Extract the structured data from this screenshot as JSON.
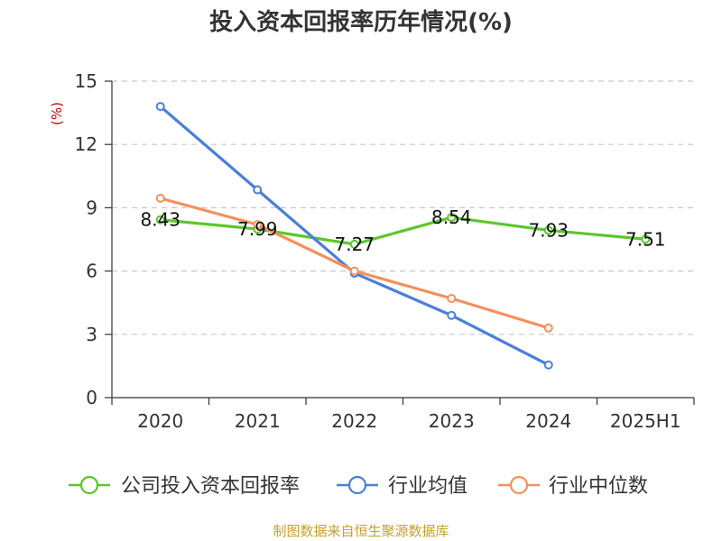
{
  "chart_data": {
    "type": "line",
    "title": "投入资本回报率历年情况(%)",
    "ylabel": "(%)",
    "xlabel": "",
    "categories": [
      "2020",
      "2021",
      "2022",
      "2023",
      "2024",
      "2025H1"
    ],
    "ylim": [
      0,
      15
    ],
    "yticks": [
      0,
      3,
      6,
      9,
      12,
      15
    ],
    "grid": true,
    "legend_position": "bottom",
    "series": [
      {
        "name": "公司投入资本回报率",
        "color": "#5bc72b",
        "values": [
          8.43,
          7.99,
          7.27,
          8.54,
          7.93,
          7.51
        ],
        "labels": [
          "8.43",
          "7.99",
          "7.27",
          "8.54",
          "7.93",
          "7.51"
        ]
      },
      {
        "name": "行业均值",
        "color": "#4a7fdb",
        "values": [
          13.8,
          9.85,
          5.9,
          3.9,
          1.55,
          null
        ]
      },
      {
        "name": "行业中位数",
        "color": "#f5905a",
        "values": [
          9.45,
          8.2,
          6.0,
          4.7,
          3.3,
          null
        ]
      }
    ]
  },
  "source": "制图数据来自恒生聚源数据库"
}
